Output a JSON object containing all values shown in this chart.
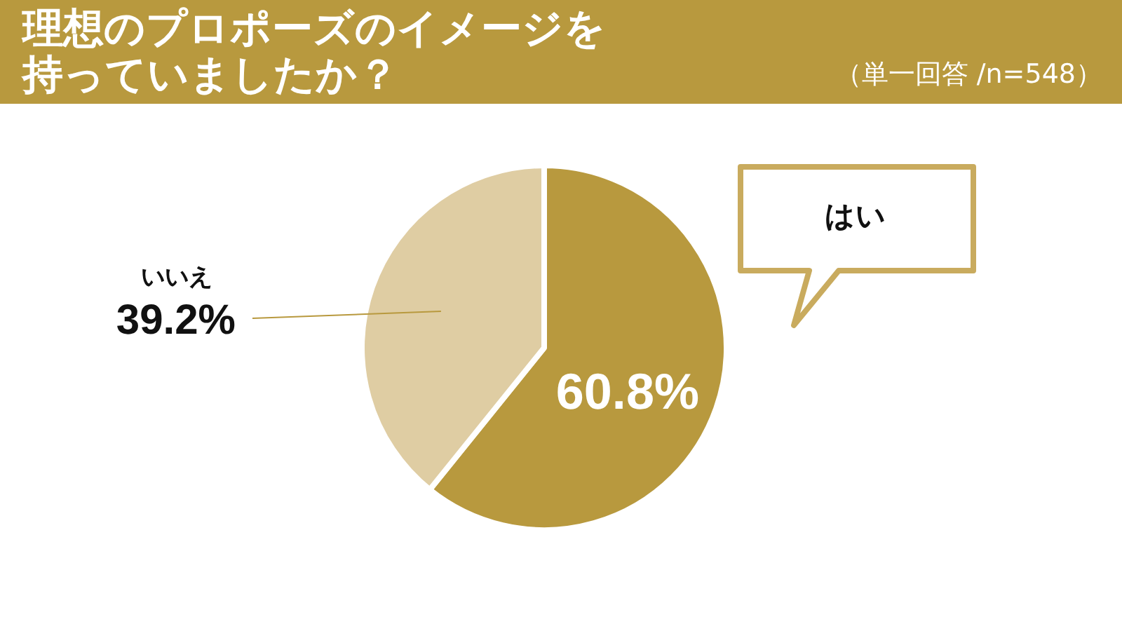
{
  "chart_data": {
    "type": "pie",
    "title": "理想のプロポーズのイメージを持っていましたか？",
    "subtitle": "（単一回答 /n=548）",
    "categories": [
      "はい",
      "いいえ"
    ],
    "values": [
      60.8,
      39.2
    ],
    "colors": [
      "#b8993e",
      "#dfcda3"
    ],
    "value_labels": [
      "60.8%",
      "39.2%"
    ]
  }
}
